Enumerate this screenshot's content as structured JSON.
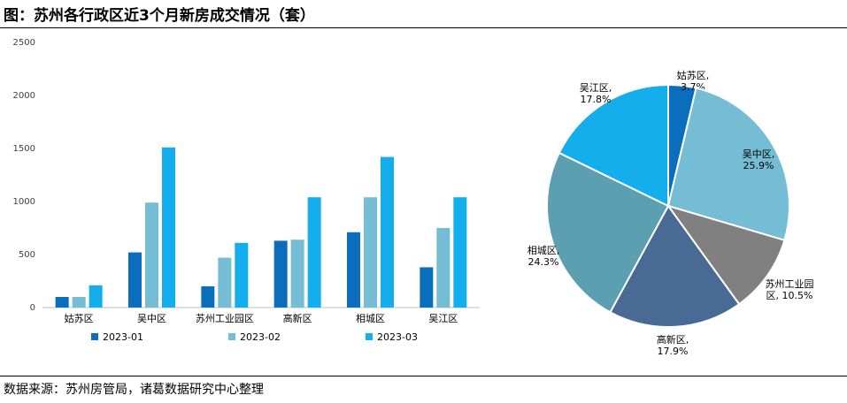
{
  "title": "图：苏州各行政区近3个月新房成交情况（套）",
  "source": "数据来源：苏州房管局，诸葛数据研究中心整理",
  "chart_data": [
    {
      "type": "bar",
      "categories": [
        "姑苏区",
        "吴中区",
        "苏州工业园区",
        "高新区",
        "相城区",
        "吴江区"
      ],
      "series": [
        {
          "name": "2023-01",
          "color": "#0A6EBD",
          "values": [
            100,
            520,
            200,
            630,
            710,
            380
          ]
        },
        {
          "name": "2023-02",
          "color": "#74BDD4",
          "values": [
            100,
            990,
            470,
            640,
            1040,
            750
          ]
        },
        {
          "name": "2023-03",
          "color": "#13AEEB",
          "values": [
            210,
            1510,
            610,
            1040,
            1420,
            1040
          ]
        }
      ],
      "yticks": [
        0,
        500,
        1000,
        1500,
        2000,
        2500
      ],
      "ylim": [
        0,
        2500
      ],
      "grid": false,
      "legend": "bottom"
    },
    {
      "type": "pie",
      "slices": [
        {
          "name": "姑苏区",
          "value": 3.7,
          "label_lines": [
            "姑苏区,",
            "3.7%"
          ],
          "color": "#0A6EBD"
        },
        {
          "name": "吴中区",
          "value": 25.9,
          "label_lines": [
            "吴中区,",
            "25.9%"
          ],
          "color": "#74BDD4"
        },
        {
          "name": "苏州工业园区",
          "value": 10.5,
          "label_lines": [
            "苏州工业园",
            "区, 10.5%"
          ],
          "color": "#808080"
        },
        {
          "name": "高新区",
          "value": 17.9,
          "label_lines": [
            "高新区,",
            "17.9%"
          ],
          "color": "#4A6A96"
        },
        {
          "name": "相城区",
          "value": 24.3,
          "label_lines": [
            "相城区,",
            "24.3%"
          ],
          "color": "#5B9FB0"
        },
        {
          "name": "吴江区",
          "value": 17.8,
          "label_lines": [
            "吴江区,",
            "17.8%"
          ],
          "color": "#13AEEB"
        }
      ]
    }
  ]
}
